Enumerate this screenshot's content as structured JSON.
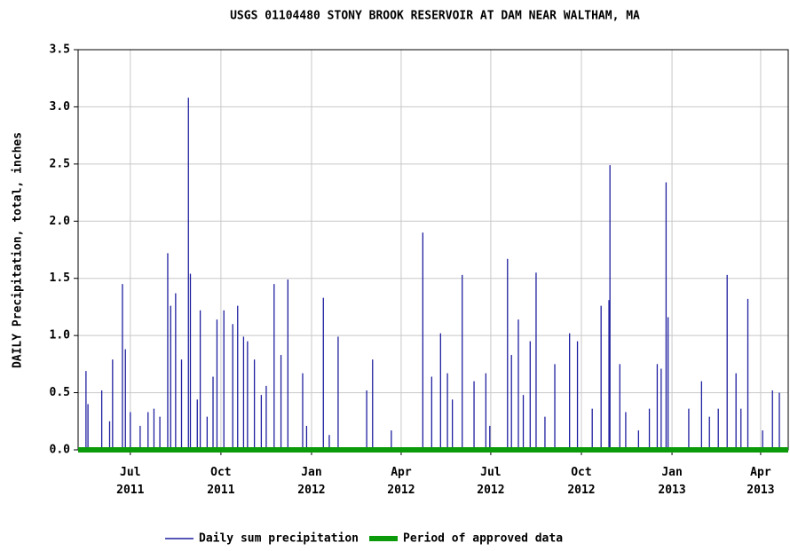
{
  "chart_data": {
    "type": "line",
    "title": "USGS 01104480 STONY BROOK RESERVOIR AT DAM NEAR WALTHAM, MA",
    "y_label": "DAILY Precipitation, total, inches",
    "xlim": [
      "2011-05-09",
      "2013-04-29"
    ],
    "xticks": [
      {
        "value": "2011-07-01",
        "label": "Jul 2011"
      },
      {
        "value": "2011-10-01",
        "label": "Oct 2011"
      },
      {
        "value": "2012-01-01",
        "label": "Jan 2012"
      },
      {
        "value": "2012-04-01",
        "label": "Apr 2012"
      },
      {
        "value": "2012-07-01",
        "label": "Jul 2012"
      },
      {
        "value": "2012-10-01",
        "label": "Oct 2012"
      },
      {
        "value": "2013-01-01",
        "label": "Jan 2013"
      },
      {
        "value": "2013-04-01",
        "label": "Apr 2013"
      }
    ],
    "ylim": [
      0,
      3.5
    ],
    "yticks": [
      {
        "value": 0,
        "label": "0.0"
      },
      0.5,
      {
        "value": 1,
        "label": "1.0"
      },
      1.5,
      {
        "value": 2,
        "label": "2.0"
      },
      2.5,
      {
        "value": 3,
        "label": "3.0"
      },
      3.5
    ],
    "grid": true,
    "legend": "bottom",
    "series": [
      {
        "name": "Daily sum precipitation",
        "color": "#1f1fa0",
        "x": [
          "2011-05-17",
          "2011-05-19",
          "2011-06-02",
          "2011-06-10",
          "2011-06-13",
          "2011-06-23",
          "2011-06-26",
          "2011-07-01",
          "2011-07-11",
          "2011-07-19",
          "2011-07-25",
          "2011-07-31",
          "2011-08-08",
          "2011-08-11",
          "2011-08-16",
          "2011-08-22",
          "2011-08-29",
          "2011-08-31",
          "2011-09-07",
          "2011-09-10",
          "2011-09-17",
          "2011-09-23",
          "2011-09-27",
          "2011-10-04",
          "2011-10-13",
          "2011-10-18",
          "2011-10-24",
          "2011-10-28",
          "2011-11-04",
          "2011-11-11",
          "2011-11-16",
          "2011-11-24",
          "2011-12-01",
          "2011-12-08",
          "2011-12-23",
          "2011-12-27",
          "2012-01-13",
          "2012-01-19",
          "2012-01-28",
          "2012-02-26",
          "2012-03-03",
          "2012-03-22",
          "2012-04-23",
          "2012-05-02",
          "2012-05-11",
          "2012-05-18",
          "2012-05-23",
          "2012-06-02",
          "2012-06-14",
          "2012-06-26",
          "2012-06-30",
          "2012-07-18",
          "2012-07-22",
          "2012-07-29",
          "2012-08-03",
          "2012-08-10",
          "2012-08-16",
          "2012-08-25",
          "2012-09-04",
          "2012-09-19",
          "2012-09-27",
          "2012-10-12",
          "2012-10-21",
          "2012-10-29",
          "2012-10-30",
          "2012-11-09",
          "2012-11-15",
          "2012-11-28",
          "2012-12-09",
          "2012-12-17",
          "2012-12-21",
          "2012-12-26",
          "2012-12-28",
          "2013-01-18",
          "2013-01-31",
          "2013-02-08",
          "2013-02-17",
          "2013-02-26",
          "2013-03-07",
          "2013-03-12",
          "2013-03-19",
          "2013-04-03",
          "2013-04-13",
          "2013-04-20"
        ],
        "values": [
          0.69,
          0.4,
          0.52,
          0.25,
          0.79,
          1.45,
          0.88,
          0.33,
          0.21,
          0.33,
          0.36,
          0.29,
          1.72,
          1.26,
          1.37,
          0.79,
          3.08,
          1.54,
          0.44,
          1.22,
          0.29,
          0.64,
          1.14,
          1.22,
          1.1,
          1.26,
          0.99,
          0.95,
          0.79,
          0.48,
          0.56,
          1.45,
          0.83,
          1.49,
          0.67,
          0.21,
          1.33,
          0.13,
          0.99,
          0.52,
          0.79,
          0.17,
          1.9,
          0.64,
          1.02,
          0.67,
          0.44,
          1.53,
          0.6,
          0.67,
          0.21,
          1.67,
          0.83,
          1.14,
          0.48,
          0.95,
          1.55,
          0.29,
          0.75,
          1.02,
          0.95,
          0.36,
          1.26,
          1.31,
          2.49,
          0.75,
          0.33,
          0.17,
          0.36,
          0.75,
          0.71,
          2.34,
          1.16,
          0.36,
          0.6,
          0.29,
          0.36,
          1.53,
          0.67,
          0.36,
          1.32,
          0.17,
          0.52,
          0.5
        ]
      },
      {
        "name": "Period of approved data",
        "color": "#0a9a0a",
        "x": [
          "2011-05-09",
          "2013-04-29"
        ],
        "values": [
          0,
          0
        ]
      }
    ]
  }
}
